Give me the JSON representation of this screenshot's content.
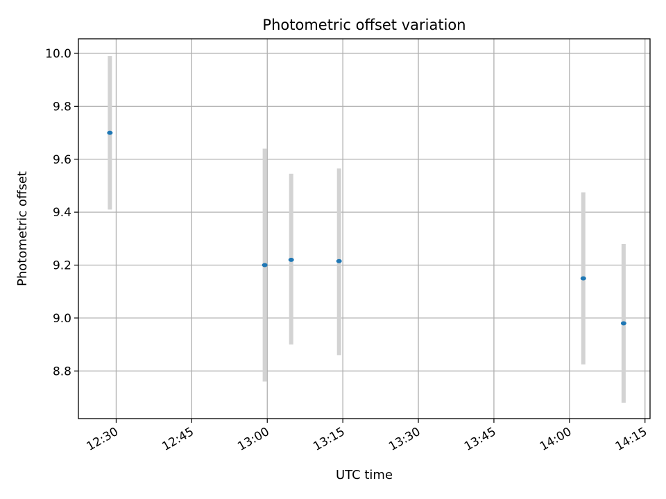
{
  "chart_data": {
    "type": "scatter",
    "title": "Photometric offset variation",
    "xlabel": "UTC time",
    "ylabel": "Photometric offset",
    "x_ticks": [
      "12:30",
      "12:45",
      "13:00",
      "13:15",
      "13:30",
      "13:45",
      "14:00",
      "14:15"
    ],
    "y_ticks": [
      "8.8",
      "9.0",
      "9.2",
      "9.4",
      "9.6",
      "9.8",
      "10.0"
    ],
    "xlim": [
      "12:22:30",
      "14:16:00"
    ],
    "ylim": [
      8.62,
      10.055
    ],
    "grid": true,
    "marker_color": "#1f77b4",
    "errorbar_color": "#d3d3d3",
    "points": [
      {
        "x": "12:28:45",
        "y": 9.7,
        "ylow": 9.41,
        "yhigh": 9.99
      },
      {
        "x": "12:59:30",
        "y": 9.2,
        "ylow": 8.76,
        "yhigh": 9.64
      },
      {
        "x": "13:04:45",
        "y": 9.22,
        "ylow": 8.9,
        "yhigh": 9.545
      },
      {
        "x": "13:14:15",
        "y": 9.215,
        "ylow": 8.86,
        "yhigh": 9.565
      },
      {
        "x": "14:02:45",
        "y": 9.15,
        "ylow": 8.825,
        "yhigh": 9.475
      },
      {
        "x": "14:10:45",
        "y": 8.98,
        "ylow": 8.68,
        "yhigh": 9.28
      }
    ]
  }
}
